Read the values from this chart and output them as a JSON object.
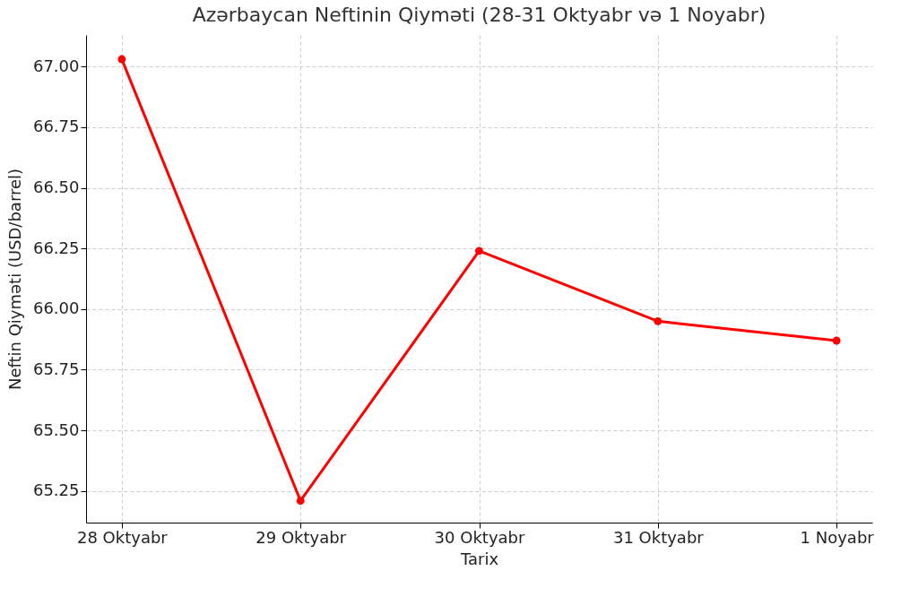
{
  "chart_data": {
    "type": "line",
    "title": "Azərbaycan Neftinin Qiyməti (28-31 Oktyabr və 1 Noyabr)",
    "xlabel": "Tarix",
    "ylabel": "Neftin Qiyməti (USD/barrel)",
    "categories": [
      "28 Oktyabr",
      "29 Oktyabr",
      "30 Oktyabr",
      "31 Oktyabr",
      "1 Noyabr"
    ],
    "series": [
      {
        "color": "#ff0000",
        "values": [
          67.03,
          65.21,
          66.24,
          65.95,
          65.87
        ]
      }
    ],
    "ylim": [
      65.12,
      67.13
    ],
    "yticks": [
      {
        "value": 65.25,
        "label": "65.25"
      },
      {
        "value": 65.5,
        "label": "65.50"
      },
      {
        "value": 65.75,
        "label": "65.75"
      },
      {
        "value": 66,
        "label": "66.00"
      },
      {
        "value": 66.25,
        "label": "66.25"
      },
      {
        "value": 66.5,
        "label": "66.50"
      },
      {
        "value": 66.75,
        "label": "66.75"
      },
      {
        "value": 67,
        "label": "67.00"
      }
    ],
    "grid": true,
    "marker": "circle",
    "line_style": "solid",
    "legend": false
  }
}
